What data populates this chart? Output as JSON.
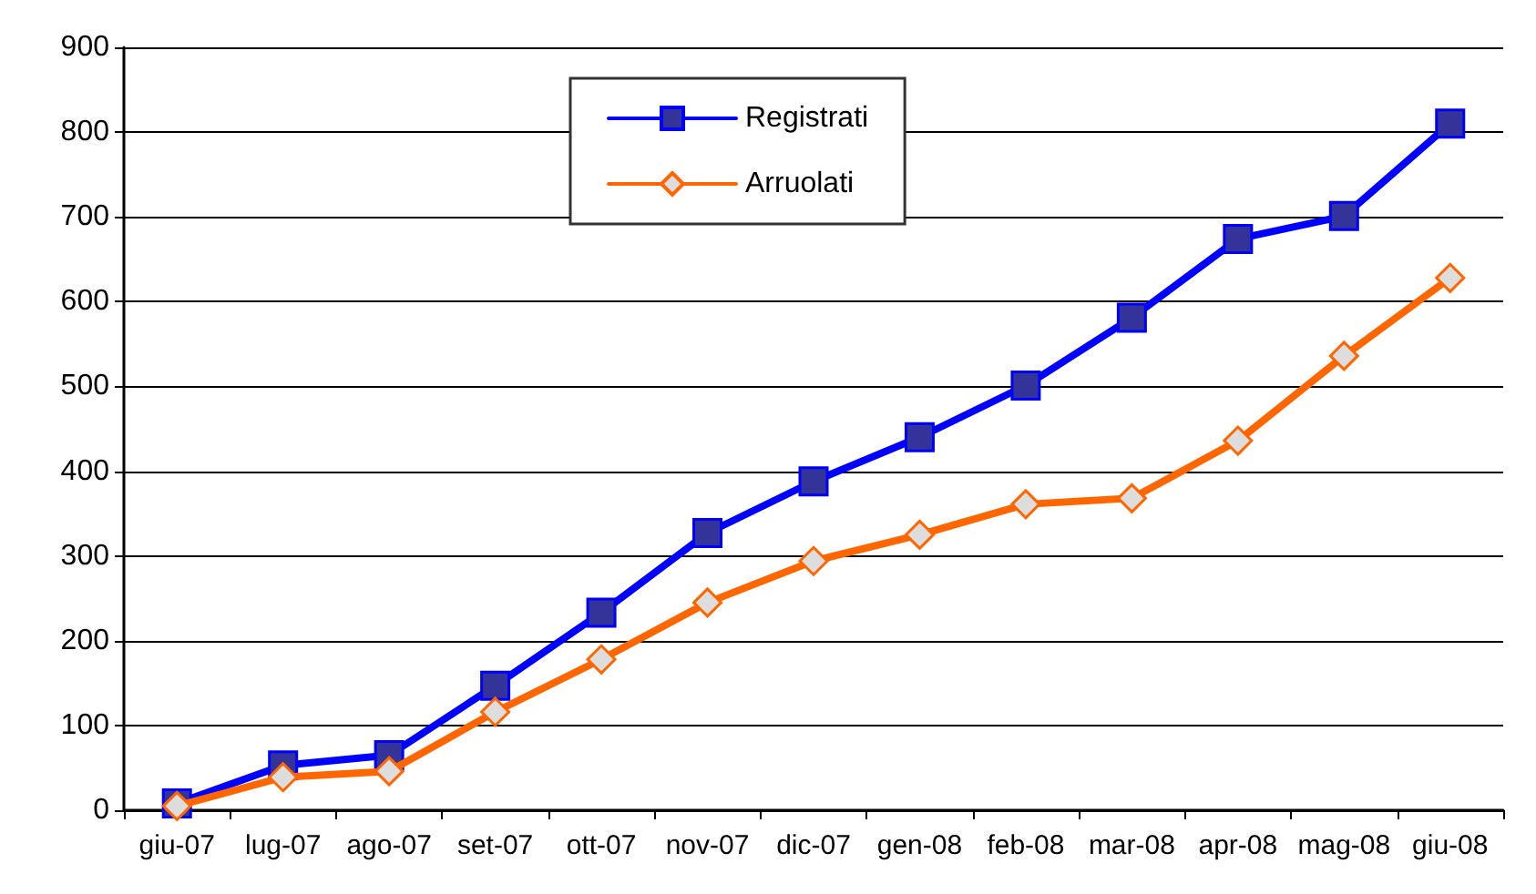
{
  "chart_data": {
    "type": "line",
    "categories": [
      "giu-07",
      "lug-07",
      "ago-07",
      "set-07",
      "ott-07",
      "nov-07",
      "dic-07",
      "gen-08",
      "feb-08",
      "mar-08",
      "apr-08",
      "mag-08",
      "giu-08"
    ],
    "series": [
      {
        "name": "Registrati",
        "color": "#0000ff",
        "marker": "square",
        "values": [
          8,
          53,
          65,
          147,
          233,
          327,
          388,
          440,
          501,
          581,
          674,
          701,
          810
        ]
      },
      {
        "name": "Arruolati",
        "color": "#ff6600",
        "marker": "diamond",
        "values": [
          5,
          39,
          46,
          116,
          178,
          245,
          294,
          325,
          361,
          368,
          436,
          536,
          628
        ]
      }
    ],
    "ylim": [
      0,
      900
    ],
    "yticks": [
      0,
      100,
      200,
      300,
      400,
      500,
      600,
      700,
      800,
      900
    ],
    "grid": "y",
    "legend": "top",
    "line_style": "solid"
  }
}
